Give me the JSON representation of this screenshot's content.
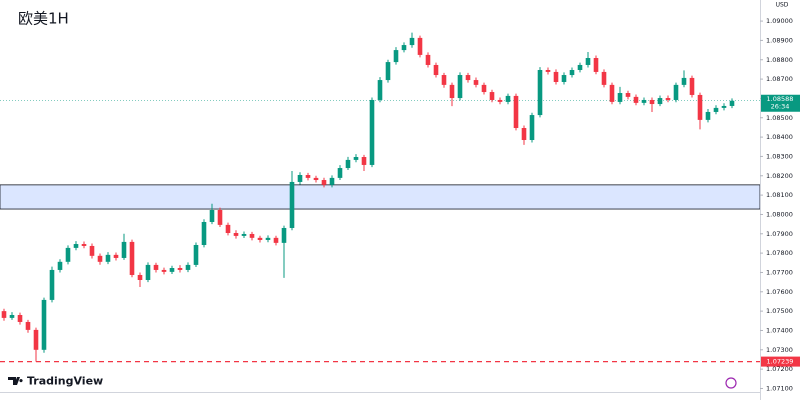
{
  "chart_data": {
    "type": "candlestick",
    "title": "欧美1H",
    "currency": "USD",
    "branding": "TradingView",
    "up_color": "#089981",
    "down_color": "#f23645",
    "ylim": [
      1.07118,
      1.09109
    ],
    "yticks": [
      {
        "value": 1.09,
        "label": "1.09000"
      },
      {
        "value": 1.089,
        "label": "1.08900"
      },
      {
        "value": 1.088,
        "label": "1.08800"
      },
      {
        "value": 1.087,
        "label": "1.08700"
      },
      {
        "value": 1.086,
        "label": "1.08600"
      },
      {
        "value": 1.085,
        "label": "1.08500"
      },
      {
        "value": 1.084,
        "label": "1.08400"
      },
      {
        "value": 1.083,
        "label": "1.08300"
      },
      {
        "value": 1.082,
        "label": "1.08200"
      },
      {
        "value": 1.081,
        "label": "1.08100"
      },
      {
        "value": 1.08,
        "label": "1.08000"
      },
      {
        "value": 1.079,
        "label": "1.07900"
      },
      {
        "value": 1.078,
        "label": "1.07800"
      },
      {
        "value": 1.077,
        "label": "1.07700"
      },
      {
        "value": 1.076,
        "label": "1.07600"
      },
      {
        "value": 1.075,
        "label": "1.07500"
      },
      {
        "value": 1.074,
        "label": "1.07400"
      },
      {
        "value": 1.073,
        "label": "1.07300"
      },
      {
        "value": 1.072,
        "label": "1.07200"
      },
      {
        "value": 1.071,
        "label": "1.07100"
      }
    ],
    "grid": false,
    "zone": [
      1.08028,
      1.08153
    ],
    "zone_color": "#dbe6ff",
    "last_price": {
      "value": 1.08588,
      "label": "1.08588"
    },
    "countdown": "26:34",
    "level": {
      "value": 1.07239,
      "label": "1.07239"
    },
    "level_color": "#f23645",
    "open": [
      1.075,
      1.07465,
      1.0748,
      1.07444,
      1.07403,
      1.073,
      1.07558,
      1.07713,
      1.07755,
      1.07827,
      1.07847,
      1.07837,
      1.07786,
      1.07755,
      1.07791,
      1.07775,
      1.07858,
      1.07687,
      1.07661,
      1.07739,
      1.07713,
      1.07703,
      1.07723,
      1.07713,
      1.07739,
      1.07842,
      1.07961,
      1.08023,
      1.07946,
      1.07904,
      1.07889,
      1.07899,
      1.07879,
      1.07868,
      1.07879,
      1.07853,
      1.0793,
      1.08168,
      1.08204,
      1.08189,
      1.08178,
      1.08153,
      1.08189,
      1.0824,
      1.08282,
      1.08297,
      1.08256,
      1.08592,
      1.08695,
      1.08788,
      1.0885,
      1.08876,
      1.08913,
      1.08825,
      1.08773,
      1.08721,
      1.0867,
      1.08602,
      1.08721,
      1.08695,
      1.0867,
      1.08633,
      1.08592,
      1.08582,
      1.08613,
      1.08447,
      1.08385,
      1.08514,
      1.08747,
      1.08737,
      1.08685,
      1.08721,
      1.08747,
      1.08773,
      1.08809,
      1.08737,
      1.0867,
      1.08582,
      1.08628,
      1.08608,
      1.08577,
      1.08592,
      1.08571,
      1.08602,
      1.08592,
      1.0867,
      1.08706,
      1.08618,
      1.08489,
      1.0853,
      1.08551,
      1.08561
    ],
    "high": [
      1.07512,
      1.07495,
      1.07492,
      1.07455,
      1.07415,
      1.0757,
      1.0773,
      1.07768,
      1.0784,
      1.07862,
      1.0786,
      1.0785,
      1.07798,
      1.07805,
      1.07803,
      1.079,
      1.0787,
      1.077,
      1.07752,
      1.0775,
      1.07725,
      1.07735,
      1.07738,
      1.07752,
      1.07855,
      1.07975,
      1.08055,
      1.08035,
      1.07958,
      1.07918,
      1.07912,
      1.0791,
      1.0789,
      1.07892,
      1.0789,
      1.07942,
      1.08225,
      1.08218,
      1.08215,
      1.082,
      1.0819,
      1.08202,
      1.08255,
      1.08298,
      1.08312,
      1.08308,
      1.08605,
      1.0871,
      1.088,
      1.08865,
      1.0889,
      1.0894,
      1.08925,
      1.08838,
      1.08785,
      1.08732,
      1.08682,
      1.08735,
      1.08732,
      1.08708,
      1.08682,
      1.08645,
      1.08605,
      1.08625,
      1.08625,
      1.0846,
      1.08526,
      1.08762,
      1.0876,
      1.0875,
      1.08735,
      1.0876,
      1.08785,
      1.0884,
      1.08822,
      1.0875,
      1.08682,
      1.0866,
      1.0864,
      1.0862,
      1.08605,
      1.08605,
      1.08615,
      1.08615,
      1.08682,
      1.08745,
      1.08718,
      1.0863,
      1.08545,
      1.08565,
      1.08575,
      1.086
    ],
    "low": [
      1.0745,
      1.07455,
      1.0743,
      1.07388,
      1.07239,
      1.07285,
      1.07545,
      1.077,
      1.07742,
      1.07815,
      1.07825,
      1.07772,
      1.0774,
      1.07743,
      1.07762,
      1.07765,
      1.07675,
      1.07625,
      1.0765,
      1.077,
      1.0769,
      1.07692,
      1.077,
      1.07702,
      1.07728,
      1.0783,
      1.0795,
      1.07935,
      1.07892,
      1.07875,
      1.07878,
      1.07866,
      1.07855,
      1.07856,
      1.0784,
      1.07672,
      1.07918,
      1.08155,
      1.08176,
      1.08165,
      1.0814,
      1.0814,
      1.08178,
      1.0823,
      1.0827,
      1.08225,
      1.08245,
      1.0858,
      1.08682,
      1.08775,
      1.08838,
      1.08862,
      1.08812,
      1.0876,
      1.08708,
      1.08655,
      1.0856,
      1.0859,
      1.08682,
      1.08657,
      1.0862,
      1.0858,
      1.0857,
      1.0857,
      1.08435,
      1.0836,
      1.08372,
      1.08502,
      1.08724,
      1.08672,
      1.08672,
      1.08708,
      1.08735,
      1.0876,
      1.08725,
      1.08657,
      1.0857,
      1.0857,
      1.08595,
      1.08565,
      1.08565,
      1.0853,
      1.0856,
      1.0858,
      1.0858,
      1.08658,
      1.08605,
      1.0844,
      1.08476,
      1.08518,
      1.08538,
      1.0855
    ],
    "close": [
      1.07465,
      1.0748,
      1.07444,
      1.07403,
      1.073,
      1.07558,
      1.07713,
      1.07755,
      1.07827,
      1.07847,
      1.07837,
      1.07786,
      1.07755,
      1.07791,
      1.07775,
      1.07858,
      1.07687,
      1.07661,
      1.07739,
      1.07713,
      1.07703,
      1.07723,
      1.07713,
      1.07739,
      1.07842,
      1.07961,
      1.08023,
      1.07946,
      1.07904,
      1.07889,
      1.07899,
      1.07879,
      1.07868,
      1.07879,
      1.07853,
      1.0793,
      1.08168,
      1.08204,
      1.08189,
      1.08178,
      1.08153,
      1.08189,
      1.0824,
      1.08282,
      1.08297,
      1.08256,
      1.08592,
      1.08695,
      1.08788,
      1.0885,
      1.08876,
      1.08913,
      1.08825,
      1.08773,
      1.08721,
      1.0867,
      1.08602,
      1.08721,
      1.08695,
      1.0867,
      1.08633,
      1.08592,
      1.08582,
      1.08613,
      1.08447,
      1.08385,
      1.08514,
      1.08747,
      1.08737,
      1.08685,
      1.08721,
      1.08747,
      1.08773,
      1.08809,
      1.08737,
      1.0867,
      1.08582,
      1.08628,
      1.08608,
      1.08577,
      1.08592,
      1.08571,
      1.08602,
      1.08592,
      1.0867,
      1.08706,
      1.08618,
      1.08489,
      1.0853,
      1.08551,
      1.08561,
      1.08588
    ]
  }
}
